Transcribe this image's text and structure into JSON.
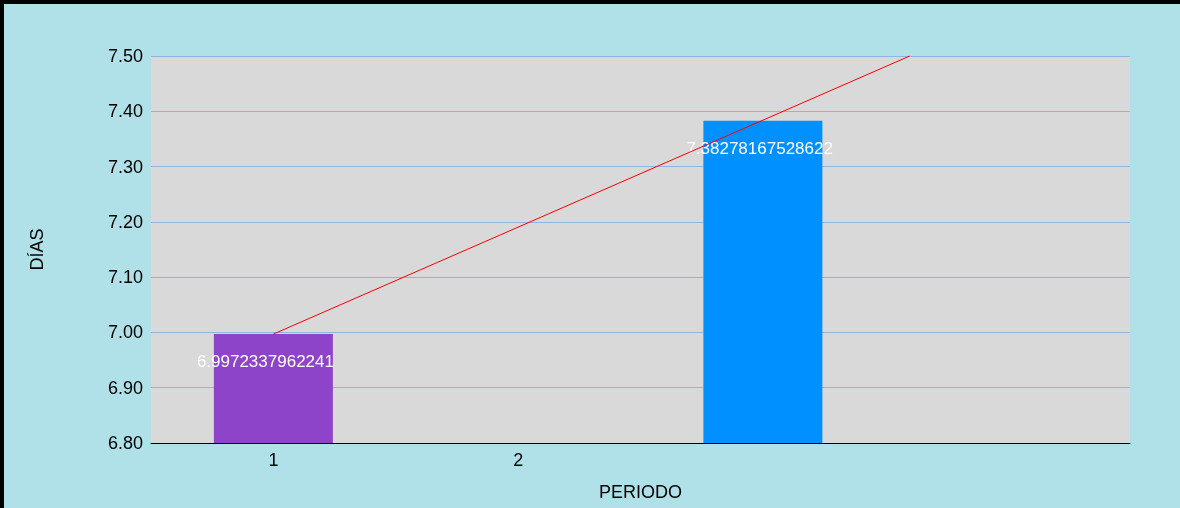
{
  "chart_data": {
    "type": "bar",
    "xlabel": "PERIODO",
    "ylabel": "DÍAS",
    "xlim": [
      0.5,
      4.5
    ],
    "xticks": [
      1,
      2
    ],
    "ylim": [
      6.8,
      7.5
    ],
    "yticks": [
      {
        "value": 6.8,
        "label": "6.80"
      },
      {
        "value": 6.9,
        "label": "6.90"
      },
      {
        "value": 7.0,
        "label": "7.00"
      },
      {
        "value": 7.1,
        "label": "7.10"
      },
      {
        "value": 7.2,
        "label": "7.20"
      },
      {
        "value": 7.3,
        "label": "7.30"
      },
      {
        "value": 7.4,
        "label": "7.40"
      },
      {
        "value": 7.5,
        "label": "7.50"
      }
    ],
    "grid": "y",
    "series": [
      {
        "x": [
          1,
          3
        ],
        "values": [
          6.9972337962241,
          7.38278167528622
        ],
        "value_labels": [
          "6.9972337962241",
          "7.38278167528622"
        ],
        "colors": [
          "#8e44c8",
          "#0090ff"
        ]
      },
      {
        "type": "line",
        "x": [
          1,
          3.6
        ],
        "values": [
          6.997,
          7.5
        ],
        "color": "#ff0000"
      }
    ]
  }
}
